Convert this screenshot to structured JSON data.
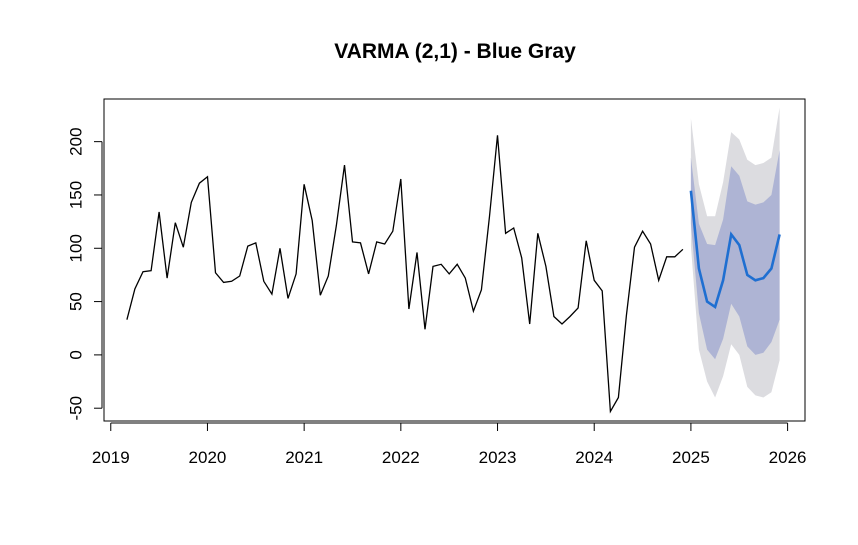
{
  "chart_data": {
    "type": "line",
    "title": "VARMA (2,1) - Blue Gray",
    "xlabel": "",
    "ylabel": "",
    "xlim": [
      2018.93,
      2026.18
    ],
    "ylim": [
      -62,
      240
    ],
    "x_ticks": [
      2019,
      2020,
      2021,
      2022,
      2023,
      2024,
      2025,
      2026
    ],
    "y_ticks": [
      -50,
      0,
      50,
      100,
      150,
      200
    ],
    "grid": false,
    "legend": "none",
    "colors": {
      "history": "#000000",
      "forecast": "#1f6fd1",
      "band_80": "#aeb4d4",
      "band_95": "#dcdce0"
    },
    "series": [
      {
        "x": [
          2019.167,
          2019.25,
          2019.333,
          2019.417,
          2019.5,
          2019.583,
          2019.667,
          2019.75,
          2019.833,
          2019.917,
          2020.0,
          2020.083,
          2020.167,
          2020.25,
          2020.333,
          2020.417,
          2020.5,
          2020.583,
          2020.667,
          2020.75,
          2020.833,
          2020.917,
          2021.0,
          2021.083,
          2021.167,
          2021.25,
          2021.333,
          2021.417,
          2021.5,
          2021.583,
          2021.667,
          2021.75,
          2021.833,
          2021.917,
          2022.0,
          2022.083,
          2022.167,
          2022.25,
          2022.333,
          2022.417,
          2022.5,
          2022.583,
          2022.667,
          2022.75,
          2022.833,
          2022.917,
          2023.0,
          2023.083,
          2023.167,
          2023.25,
          2023.333,
          2023.417,
          2023.5,
          2023.583,
          2023.667,
          2023.75,
          2023.833,
          2023.917,
          2024.0,
          2024.083,
          2024.167,
          2024.25,
          2024.333,
          2024.417,
          2024.5,
          2024.583,
          2024.667,
          2024.75,
          2024.833,
          2024.917
        ],
        "values": [
          33,
          62,
          78,
          79,
          134,
          72,
          124,
          101,
          143,
          161,
          167,
          77,
          68,
          69,
          74,
          102,
          105,
          69,
          57,
          100,
          53,
          76,
          160,
          126,
          56,
          74,
          121,
          178,
          106,
          105,
          76,
          106,
          104,
          116,
          165,
          43,
          96,
          24,
          83,
          85,
          76,
          85,
          72,
          41,
          61,
          130,
          206,
          114,
          119,
          91,
          29,
          114,
          83,
          36,
          29,
          36,
          44,
          107,
          70,
          60,
          -53,
          -40,
          37,
          101,
          116,
          104,
          70,
          92,
          92,
          99
        ]
      },
      {
        "x": [
          2025.0,
          2025.083,
          2025.167,
          2025.25,
          2025.333,
          2025.417,
          2025.5,
          2025.583,
          2025.667,
          2025.75,
          2025.833,
          2025.917
        ],
        "values": [
          154,
          81,
          50,
          45,
          70,
          113,
          103,
          75,
          70,
          72,
          81,
          113
        ],
        "lower_80": [
          123,
          39,
          5,
          -4,
          15,
          48,
          36,
          8,
          0,
          2,
          12,
          33
        ],
        "upper_80": [
          185,
          123,
          104,
          103,
          127,
          177,
          168,
          144,
          141,
          143,
          150,
          192
        ],
        "lower_95": [
          102,
          5,
          -25,
          -40,
          -20,
          10,
          0,
          -30,
          -38,
          -40,
          -35,
          -5
        ],
        "upper_95": [
          222,
          160,
          130,
          130,
          162,
          209,
          202,
          183,
          178,
          180,
          185,
          232
        ]
      }
    ]
  }
}
